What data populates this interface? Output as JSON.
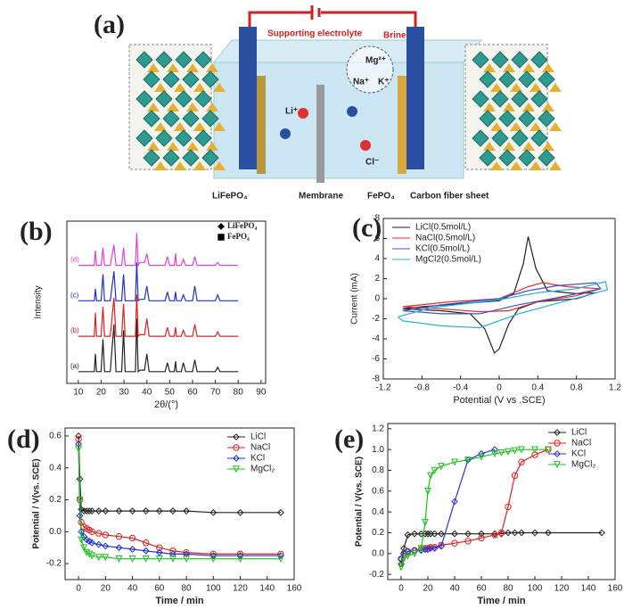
{
  "diagram": {
    "label": "(a)",
    "supporting": "Supporting electrolyte",
    "brine": "Brine",
    "ions": [
      "Mg²⁺",
      "Na⁺",
      "K⁺"
    ],
    "li": "Li⁺",
    "cl": "Cl⁻",
    "parts": [
      "LiFePO₄",
      "Membrane",
      "FePO₄",
      "Carbon fiber sheet"
    ]
  },
  "chart_data": [
    {
      "type": "line",
      "panel": "(b)",
      "xlabel": "2θ/(°)",
      "ylabel": "Intensity",
      "xlim": [
        5,
        92
      ],
      "xticks": [
        10,
        20,
        30,
        40,
        50,
        60,
        70,
        80,
        90
      ],
      "ylim": [
        0,
        110
      ],
      "legend": "curve-start",
      "symbols": [
        {
          "symbol": "diamond",
          "label": "LiFePO₄"
        },
        {
          "symbol": "square",
          "label": "FePO₄"
        }
      ],
      "x": [
        10,
        17,
        17.5,
        18,
        20,
        20.8,
        21.5,
        24,
        25.6,
        26.5,
        29,
        29.8,
        30.5,
        35,
        35.6,
        36.2,
        37,
        39,
        40,
        41,
        48,
        49,
        50,
        52,
        52.6,
        53,
        55,
        56,
        57,
        60,
        61,
        62,
        70,
        71,
        72,
        80
      ],
      "series": [
        {
          "name": "(a)",
          "color": "#222222",
          "values": [
            8,
            8,
            20,
            8,
            8,
            30,
            8,
            8,
            40,
            8,
            8,
            36,
            8,
            8,
            44,
            8,
            9,
            9,
            20,
            8,
            8,
            14,
            8,
            8,
            15,
            8,
            8,
            14,
            8,
            8,
            16,
            8,
            8,
            11,
            8,
            8
          ]
        },
        {
          "name": "(b)",
          "color": "#e02020",
          "values": [
            32,
            32,
            48,
            32,
            32,
            52,
            32,
            32,
            58,
            32,
            32,
            54,
            32,
            32,
            60,
            32,
            33,
            33,
            44,
            32,
            32,
            38,
            32,
            32,
            38,
            32,
            32,
            36,
            32,
            32,
            40,
            32,
            32,
            35,
            32,
            32
          ]
        },
        {
          "name": "(c)",
          "color": "#2030c0",
          "values": [
            56,
            56,
            64,
            56,
            56,
            74,
            56,
            56,
            76,
            56,
            56,
            74,
            56,
            56,
            82,
            56,
            57,
            57,
            66,
            56,
            56,
            62,
            56,
            56,
            62,
            56,
            56,
            60,
            56,
            56,
            66,
            56,
            56,
            60,
            56,
            56
          ]
        },
        {
          "name": "(d)",
          "color": "#e040e0",
          "values": [
            80,
            80,
            90,
            80,
            80,
            92,
            80,
            80,
            94,
            80,
            80,
            92,
            80,
            80,
            102,
            80,
            82,
            82,
            88,
            80,
            80,
            86,
            80,
            80,
            88,
            80,
            80,
            84,
            80,
            80,
            86,
            80,
            80,
            82,
            80,
            80
          ]
        }
      ]
    },
    {
      "type": "loop",
      "panel": "(c)",
      "xlabel": "Potential (V vs .SCE)",
      "ylabel": "Current (mA)",
      "xlim": [
        -1.2,
        1.2
      ],
      "xticks": [
        -1.2,
        -0.8,
        -0.4,
        0,
        0.4,
        0.8,
        1.2
      ],
      "ylim": [
        -8,
        8
      ],
      "yticks": [
        -8,
        -6,
        -4,
        -2,
        0,
        2,
        4,
        6,
        8
      ],
      "legend": "upper left",
      "series": [
        {
          "name": "LiCl(0.5mol/L)",
          "color": "#222222",
          "x": [
            -1.0,
            -0.8,
            -0.4,
            0,
            0.15,
            0.25,
            0.3,
            0.38,
            0.5,
            0.8,
            1.0,
            0.8,
            0.4,
            0.2,
            0.1,
            0,
            -0.05,
            -0.15,
            -0.3,
            -0.6,
            -1.0
          ],
          "values": [
            -1.0,
            -0.8,
            -0.5,
            -0.2,
            0.5,
            3.5,
            6.2,
            3,
            0.8,
            0.5,
            0.6,
            0.0,
            -0.3,
            -1,
            -2.5,
            -5,
            -5.4,
            -3,
            -1.5,
            -1.2,
            -1.0
          ]
        },
        {
          "name": "NaCl(0.5mol/L)",
          "color": "#e03030",
          "x": [
            -1,
            -0.5,
            0,
            0.3,
            0.45,
            0.7,
            1.05,
            0.8,
            0.4,
            0.1,
            -0.2,
            -0.6,
            -1
          ],
          "values": [
            -0.8,
            -0.3,
            0,
            1.2,
            1.6,
            1.2,
            1.0,
            0.3,
            -0.3,
            -1.2,
            -1.3,
            -1.0,
            -0.8
          ]
        },
        {
          "name": "KCl(0.5mol/L)",
          "color": "#4050d0",
          "x": [
            -1.0,
            -0.6,
            0,
            0.3,
            0.6,
            1.0,
            1.05,
            0.6,
            0.2,
            -0.2,
            -0.6,
            -1.0
          ],
          "values": [
            -1.2,
            -0.6,
            0,
            0.8,
            1.3,
            1.6,
            1.0,
            0.1,
            -0.6,
            -1.5,
            -1.5,
            -1.2
          ]
        },
        {
          "name": "MgCl2(0.5mol/L)",
          "color": "#20b0e0",
          "x": [
            -1.05,
            -0.7,
            0,
            0.4,
            0.8,
            1.1,
            1.12,
            0.7,
            0.2,
            -0.2,
            -0.6,
            -1.0,
            -1.05
          ],
          "values": [
            -1.8,
            -0.9,
            -0.1,
            0.6,
            1.0,
            1.7,
            0.9,
            -0.2,
            -1.5,
            -2.9,
            -2.7,
            -2.2,
            -1.8
          ]
        }
      ]
    },
    {
      "type": "line",
      "panel": "(d)",
      "xlabel": "Time / min",
      "ylabel": "Potential / V(vs. SCE)",
      "xlim": [
        -10,
        160
      ],
      "xticks": [
        0,
        20,
        40,
        60,
        80,
        100,
        120,
        140,
        160
      ],
      "ylim": [
        -0.3,
        0.65
      ],
      "yticks": [
        -0.2,
        {
          "value": 0,
          "label": "0.0"
        },
        0.2,
        0.4,
        0.6
      ],
      "legend": "upper right",
      "x": [
        0,
        1,
        2,
        4,
        6,
        8,
        10,
        15,
        20,
        30,
        40,
        50,
        60,
        70,
        80,
        100,
        120,
        150
      ],
      "series": [
        {
          "name": "LiCl",
          "color": "#222222",
          "marker": "diamond",
          "values": [
            0.6,
            0.33,
            0.14,
            0.13,
            0.13,
            0.13,
            0.13,
            0.13,
            0.13,
            0.13,
            0.13,
            0.13,
            0.13,
            0.13,
            0.13,
            0.12,
            0.12,
            0.12
          ]
        },
        {
          "name": "NaCl",
          "color": "#e02020",
          "marker": "circle",
          "values": [
            0.58,
            0.2,
            0.06,
            0.03,
            0.02,
            0.01,
            0.0,
            -0.01,
            -0.02,
            -0.03,
            -0.04,
            -0.07,
            -0.1,
            -0.12,
            -0.13,
            -0.14,
            -0.14,
            -0.14
          ]
        },
        {
          "name": "KCl",
          "color": "#2030d0",
          "marker": "diamond",
          "values": [
            0.55,
            0.1,
            0.0,
            -0.03,
            -0.05,
            -0.06,
            -0.07,
            -0.08,
            -0.09,
            -0.1,
            -0.11,
            -0.12,
            -0.13,
            -0.14,
            -0.14,
            -0.15,
            -0.15,
            -0.15
          ]
        },
        {
          "name": "MgCl₂",
          "color": "#20c020",
          "marker": "triangle",
          "values": [
            0.52,
            0.2,
            -0.05,
            -0.1,
            -0.13,
            -0.14,
            -0.15,
            -0.16,
            -0.16,
            -0.17,
            -0.17,
            -0.17,
            -0.17,
            -0.17,
            -0.17,
            -0.17,
            -0.17,
            -0.17
          ]
        }
      ]
    },
    {
      "type": "line",
      "panel": "(e)",
      "xlabel": "Time / min",
      "ylabel": "Potential / V(vs. SCE)",
      "xlim": [
        -10,
        160
      ],
      "xticks": [
        0,
        20,
        40,
        60,
        80,
        100,
        120,
        140,
        160
      ],
      "ylim": [
        -0.25,
        1.25
      ],
      "yticks": [
        -0.2,
        {
          "value": 0,
          "label": "0.0"
        },
        0.2,
        0.4,
        0.6,
        0.8,
        {
          "value": 1,
          "label": "1.0"
        },
        1.2
      ],
      "legend": "upper right",
      "x": [
        0,
        2,
        5,
        10,
        15,
        18,
        20,
        22,
        25,
        30,
        40,
        50,
        60,
        70,
        75,
        80,
        85,
        90,
        100,
        110,
        150
      ],
      "series": [
        {
          "name": "LiCl",
          "color": "#222222",
          "marker": "diamond",
          "values": [
            -0.1,
            0.05,
            0.18,
            0.19,
            0.19,
            0.19,
            0.19,
            0.19,
            0.19,
            0.19,
            0.19,
            0.19,
            0.19,
            0.19,
            0.19,
            0.2,
            0.2,
            0.2,
            0.2,
            0.2,
            0.2
          ]
        },
        {
          "name": "NaCl",
          "color": "#e02020",
          "marker": "circle",
          "values": [
            -0.05,
            0.0,
            0.02,
            0.03,
            0.04,
            0.05,
            0.05,
            0.06,
            0.06,
            0.08,
            0.1,
            0.12,
            0.15,
            0.18,
            0.2,
            0.45,
            0.75,
            0.88,
            0.95,
            1.0,
            null
          ]
        },
        {
          "name": "KCl",
          "color": "#3030d0",
          "marker": "diamond",
          "values": [
            -0.05,
            0.0,
            0.02,
            0.03,
            0.03,
            0.04,
            0.04,
            0.05,
            0.05,
            0.07,
            0.5,
            0.9,
            0.96,
            1.0,
            null,
            null,
            null,
            null,
            null,
            null,
            null
          ]
        },
        {
          "name": "MgCl₂",
          "color": "#20c020",
          "marker": "triangle",
          "values": [
            -0.13,
            -0.05,
            -0.02,
            0.0,
            0.05,
            0.3,
            0.6,
            0.75,
            0.8,
            0.84,
            0.88,
            0.9,
            0.93,
            0.96,
            0.97,
            0.98,
            0.99,
            1.0,
            1.0,
            1.0,
            null
          ]
        }
      ]
    }
  ]
}
